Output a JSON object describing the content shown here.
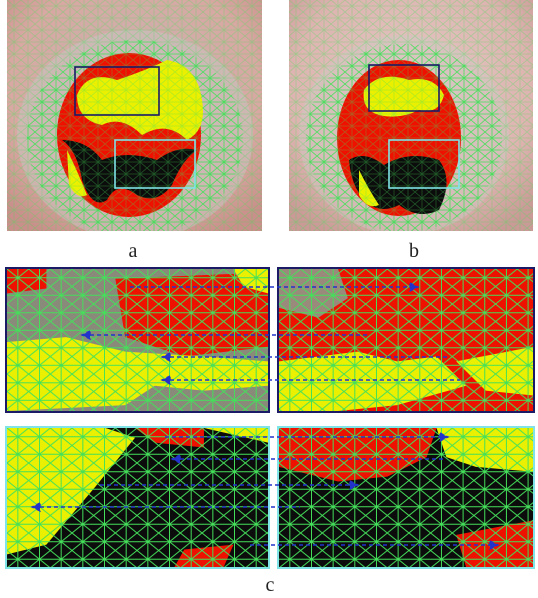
{
  "captions": {
    "a": "a",
    "b": "b",
    "c": "c"
  },
  "colors": {
    "skin": "#d9a9a4",
    "halo": "#c9c0bb",
    "red": "#ee1100",
    "yellow": "#eaf000",
    "black": "#0c0c0c",
    "mesh": "#44e05a",
    "box_dark": "#1a1a66",
    "box_cyan": "#7fe3e8",
    "arrow": "#2233cc"
  },
  "icons": {
    "mesh": "triangulation-mesh",
    "arrows": "correspondence-arrows"
  }
}
